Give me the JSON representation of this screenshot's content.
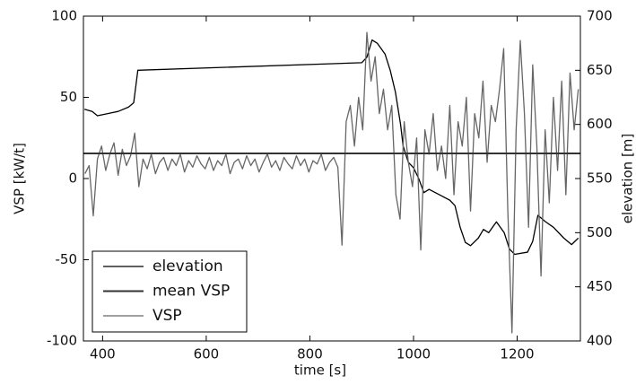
{
  "chart_data": {
    "type": "line",
    "xlabel": "time [s]",
    "ylabel": "VSP [kW/t]",
    "y2label": "elevation [m]",
    "xlim": [
      363,
      1322
    ],
    "xticks": [
      400,
      600,
      800,
      1000,
      1200
    ],
    "ylim": [
      -100,
      100
    ],
    "yticks": [
      -100,
      -50,
      0,
      50,
      100
    ],
    "y2lim": [
      400,
      700
    ],
    "y2ticks": [
      400,
      450,
      500,
      550,
      600,
      650,
      700
    ],
    "legend": "lower left",
    "series": [
      {
        "name": "elevation",
        "color": "#000000",
        "linewidth": 1.3,
        "axis": "y2",
        "x": [
          365,
          380,
          390,
          410,
          430,
          450,
          460,
          468,
          900,
          910,
          920,
          930,
          945,
          955,
          965,
          975,
          980,
          990,
          1000,
          1010,
          1020,
          1030,
          1050,
          1070,
          1080,
          1090,
          1100,
          1110,
          1125,
          1135,
          1145,
          1160,
          1175,
          1185,
          1195,
          1220,
          1230,
          1240,
          1255,
          1270,
          1290,
          1305,
          1318
        ],
        "values": [
          614,
          612,
          608,
          610,
          612,
          616,
          620,
          650,
          657,
          662,
          678,
          675,
          665,
          650,
          630,
          600,
          580,
          565,
          560,
          550,
          537,
          540,
          535,
          530,
          525,
          505,
          491,
          488,
          495,
          503,
          500,
          510,
          500,
          485,
          480,
          482,
          492,
          516,
          510,
          505,
          495,
          489,
          495
        ]
      },
      {
        "name": "mean VSP",
        "color": "#333333",
        "linewidth": 2,
        "axis": "y",
        "x": [
          363,
          1322
        ],
        "values": [
          15.5,
          15.5
        ]
      },
      {
        "name": "VSP",
        "color": "#666666",
        "linewidth": 1.3,
        "axis": "y",
        "x": [
          366,
          374,
          382,
          390,
          398,
          406,
          414,
          422,
          430,
          438,
          446,
          454,
          462,
          470,
          478,
          486,
          494,
          502,
          510,
          518,
          526,
          534,
          542,
          550,
          558,
          566,
          574,
          582,
          590,
          598,
          606,
          614,
          622,
          630,
          638,
          646,
          654,
          662,
          670,
          678,
          686,
          694,
          702,
          710,
          718,
          726,
          734,
          742,
          750,
          758,
          766,
          774,
          782,
          790,
          798,
          806,
          814,
          822,
          830,
          838,
          846,
          854,
          862,
          870,
          878,
          886,
          894,
          902,
          910,
          918,
          926,
          934,
          942,
          950,
          958,
          966,
          974,
          982,
          990,
          998,
          1006,
          1014,
          1022,
          1030,
          1038,
          1046,
          1054,
          1062,
          1070,
          1078,
          1086,
          1094,
          1102,
          1110,
          1118,
          1126,
          1134,
          1142,
          1150,
          1158,
          1166,
          1174,
          1182,
          1190,
          1198,
          1206,
          1214,
          1222,
          1230,
          1238,
          1246,
          1254,
          1262,
          1270,
          1278,
          1286,
          1294,
          1302,
          1310,
          1318
        ],
        "values": [
          3,
          8,
          -23,
          12,
          20,
          5,
          15,
          22,
          2,
          18,
          8,
          14,
          28,
          -5,
          12,
          6,
          15,
          3,
          10,
          13,
          5,
          12,
          8,
          15,
          4,
          11,
          7,
          14,
          9,
          6,
          13,
          5,
          11,
          8,
          15,
          3,
          10,
          12,
          6,
          14,
          8,
          12,
          4,
          10,
          15,
          7,
          11,
          5,
          13,
          9,
          6,
          14,
          8,
          12,
          4,
          11,
          9,
          15,
          5,
          10,
          13,
          7,
          -41,
          35,
          45,
          20,
          50,
          30,
          90,
          60,
          75,
          40,
          55,
          30,
          45,
          -10,
          -25,
          35,
          10,
          -5,
          25,
          -44,
          30,
          15,
          40,
          5,
          20,
          0,
          45,
          -10,
          35,
          20,
          50,
          -20,
          40,
          25,
          60,
          10,
          45,
          35,
          55,
          80,
          -20,
          -95,
          30,
          85,
          40,
          -30,
          70,
          20,
          -60,
          30,
          -15,
          50,
          5,
          60,
          -10,
          65,
          30,
          55
        ]
      }
    ]
  }
}
